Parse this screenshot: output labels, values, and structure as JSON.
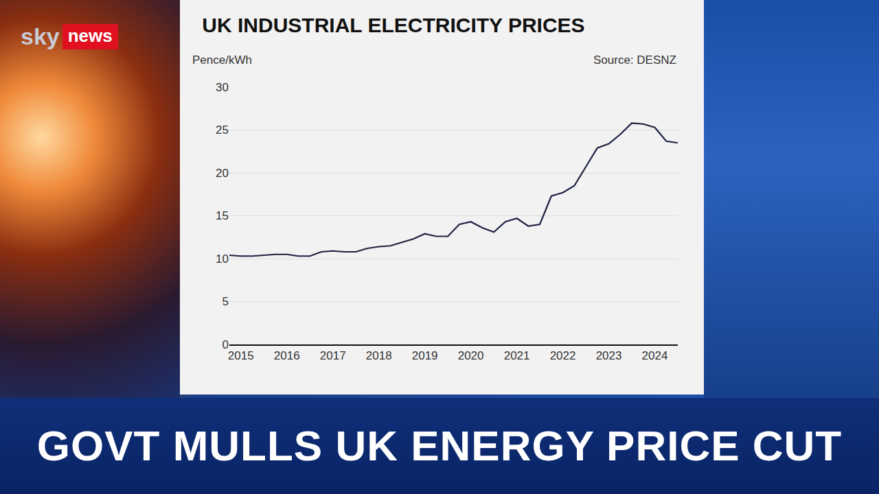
{
  "chart_data": {
    "type": "line",
    "title": "UK INDUSTRIAL ELECTRICITY PRICES",
    "y_label": "Pence/kWh",
    "annotations": [
      "Source: DESNZ"
    ],
    "categories": [
      null,
      "2015",
      null,
      null,
      null,
      "2016",
      null,
      null,
      null,
      "2017",
      null,
      null,
      null,
      "2018",
      null,
      null,
      null,
      "2019",
      null,
      null,
      null,
      "2020",
      null,
      null,
      null,
      "2021",
      null,
      null,
      null,
      "2022",
      null,
      null,
      null,
      "2023",
      null,
      null,
      null,
      "2024",
      null,
      null
    ],
    "values": [
      10.4,
      10.3,
      10.3,
      10.4,
      10.5,
      10.5,
      10.3,
      10.3,
      10.8,
      10.9,
      10.8,
      10.8,
      11.2,
      11.4,
      11.5,
      11.9,
      12.3,
      12.9,
      12.6,
      12.6,
      14.0,
      14.3,
      13.6,
      13.1,
      14.3,
      14.7,
      13.8,
      14.0,
      17.3,
      17.7,
      18.5,
      20.7,
      22.9,
      23.4,
      24.5,
      25.8,
      25.7,
      25.3,
      23.7,
      23.5
    ],
    "color": "#1c2140",
    "ylim": [
      0,
      30
    ],
    "yticks": [
      0,
      5,
      10,
      15,
      20,
      25,
      30
    ],
    "grid": true
  },
  "logo": {
    "first": "sky",
    "second": "news"
  },
  "headline": "GOVT MULLS UK ENERGY PRICE CUT"
}
